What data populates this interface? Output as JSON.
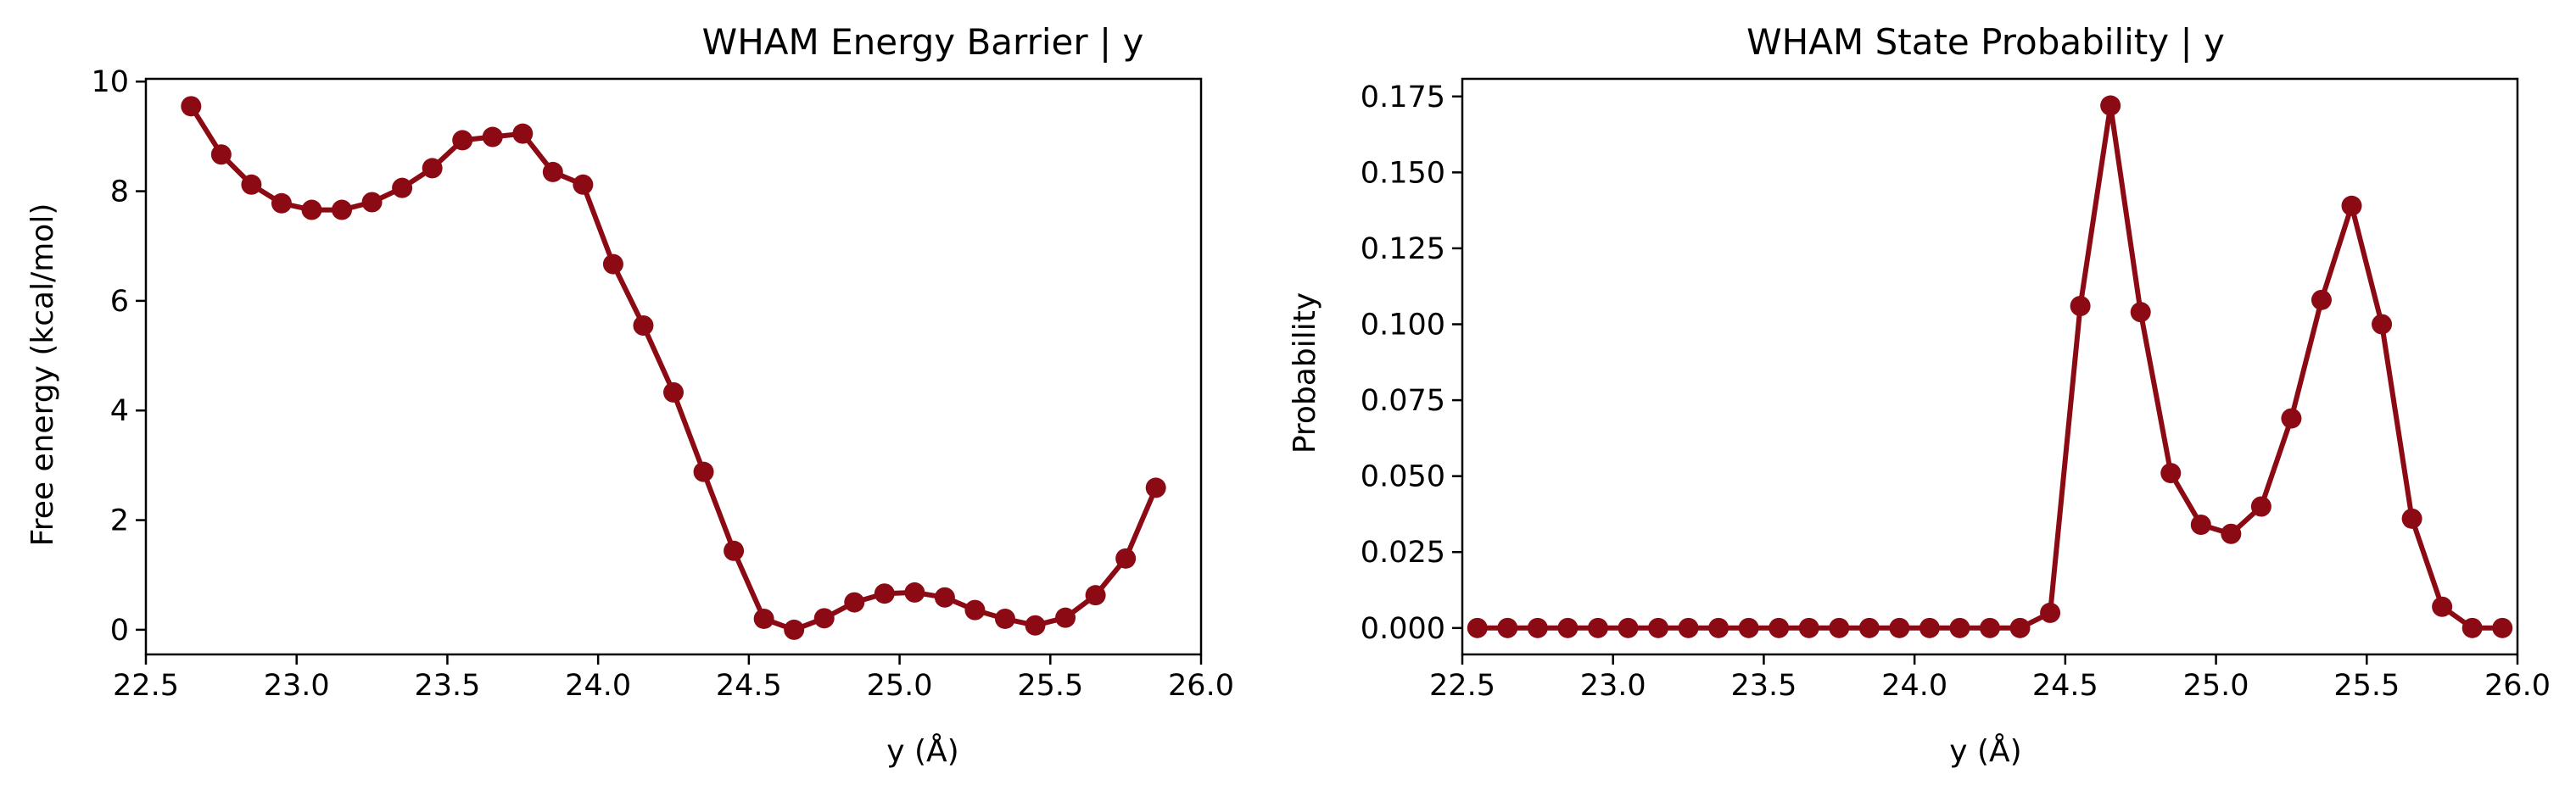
{
  "figure": {
    "line_color": "#8b0a14"
  },
  "chart_data": [
    {
      "type": "line",
      "title": "WHAM Energy Barrier | y",
      "xlabel": "y (Å)",
      "ylabel": "Free energy (kcal/mol)",
      "xlim": [
        22.5,
        26.0
      ],
      "ylim": [
        -0.45,
        10.05
      ],
      "xticks": [
        22.5,
        23.0,
        23.5,
        24.0,
        24.5,
        25.0,
        25.5,
        26.0
      ],
      "xtick_labels": [
        "22.5",
        "23.0",
        "23.5",
        "24.0",
        "24.5",
        "25.0",
        "25.5",
        "26.0"
      ],
      "yticks": [
        0,
        2,
        4,
        6,
        8,
        10
      ],
      "ytick_labels": [
        "0",
        "2",
        "4",
        "6",
        "8",
        "10"
      ],
      "grid": false,
      "markers": true,
      "series": [
        {
          "x": [
            22.65,
            22.75,
            22.85,
            22.95,
            23.05,
            23.15,
            23.25,
            23.35,
            23.45,
            23.55,
            23.65,
            23.75,
            23.85,
            23.95,
            24.05,
            24.15,
            24.25,
            24.35,
            24.45,
            24.55,
            24.65,
            24.75,
            24.85,
            24.95,
            25.05,
            25.15,
            25.25,
            25.35,
            25.45,
            25.55,
            25.65,
            25.75,
            25.85
          ],
          "y": [
            9.55,
            8.67,
            8.12,
            7.78,
            7.66,
            7.66,
            7.8,
            8.06,
            8.42,
            8.93,
            8.99,
            9.05,
            8.35,
            8.12,
            6.67,
            5.55,
            4.33,
            2.88,
            1.44,
            0.2,
            0.0,
            0.21,
            0.5,
            0.66,
            0.68,
            0.59,
            0.36,
            0.2,
            0.08,
            0.22,
            0.63,
            1.3,
            2.59
          ]
        }
      ]
    },
    {
      "type": "line",
      "title": "WHAM State Probability | y",
      "xlabel": "y (Å)",
      "ylabel": "Probability",
      "xlim": [
        22.5,
        26.0
      ],
      "ylim": [
        -0.0087,
        0.1808
      ],
      "xticks": [
        22.5,
        23.0,
        23.5,
        24.0,
        24.5,
        25.0,
        25.5,
        26.0
      ],
      "xtick_labels": [
        "22.5",
        "23.0",
        "23.5",
        "24.0",
        "24.5",
        "25.0",
        "25.5",
        "26.0"
      ],
      "yticks": [
        0,
        0.025,
        0.05,
        0.075,
        0.1,
        0.125,
        0.15,
        0.175
      ],
      "ytick_labels": [
        "0.000",
        "0.025",
        "0.050",
        "0.075",
        "0.100",
        "0.125",
        "0.150",
        "0.175"
      ],
      "grid": false,
      "markers": true,
      "series": [
        {
          "x": [
            22.55,
            22.65,
            22.75,
            22.85,
            22.95,
            23.05,
            23.15,
            23.25,
            23.35,
            23.45,
            23.55,
            23.65,
            23.75,
            23.85,
            23.95,
            24.05,
            24.15,
            24.25,
            24.35,
            24.45,
            24.55,
            24.65,
            24.75,
            24.85,
            24.95,
            25.05,
            25.15,
            25.25,
            25.35,
            25.45,
            25.55,
            25.65,
            25.75,
            25.85,
            25.95
          ],
          "y": [
            0,
            0,
            0,
            0,
            0,
            0,
            0,
            0,
            0,
            0,
            0,
            0,
            0,
            0,
            0,
            0,
            0,
            0,
            0,
            0.005,
            0.106,
            0.172,
            0.104,
            0.051,
            0.034,
            0.031,
            0.04,
            0.069,
            0.108,
            0.139,
            0.1,
            0.036,
            0.007,
            0,
            0
          ]
        }
      ]
    }
  ]
}
